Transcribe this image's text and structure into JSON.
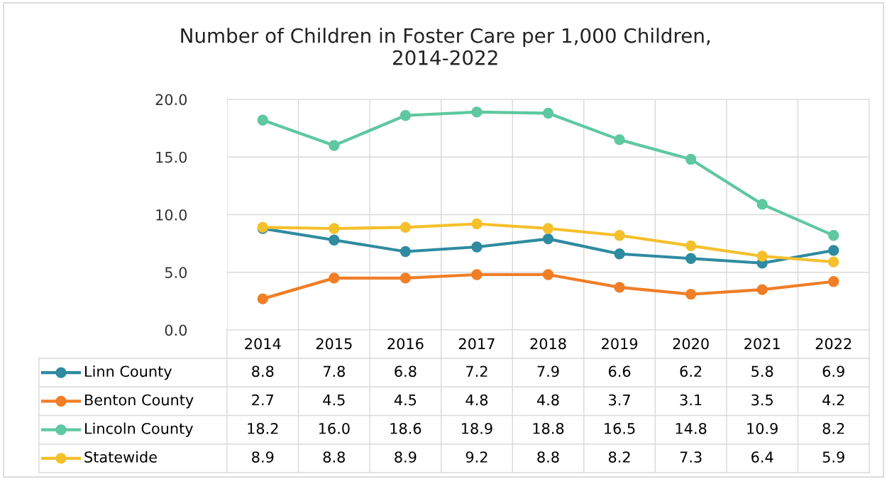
{
  "chart_data": {
    "type": "line",
    "title": "Number of Children in Foster Care per 1,000 Children,\n2014-2022",
    "categories": [
      "2014",
      "2015",
      "2016",
      "2017",
      "2018",
      "2019",
      "2020",
      "2021",
      "2022"
    ],
    "series": [
      {
        "name": "Linn County",
        "color": "#2e8ba0",
        "values": [
          8.8,
          7.8,
          6.8,
          7.2,
          7.9,
          6.6,
          6.2,
          5.8,
          6.9
        ],
        "value_labels": [
          "8.8",
          "7.8",
          "6.8",
          "7.2",
          "7.9",
          "6.6",
          "6.2",
          "5.8",
          "6.9"
        ]
      },
      {
        "name": "Benton County",
        "color": "#f07e26",
        "values": [
          2.7,
          4.5,
          4.5,
          4.8,
          4.8,
          3.7,
          3.1,
          3.5,
          4.2
        ],
        "value_labels": [
          "2.7",
          "4.5",
          "4.5",
          "4.8",
          "4.8",
          "3.7",
          "3.1",
          "3.5",
          "4.2"
        ]
      },
      {
        "name": "Lincoln County",
        "color": "#5ec8a0",
        "values": [
          18.2,
          16.0,
          18.6,
          18.9,
          18.8,
          16.5,
          14.8,
          10.9,
          8.2
        ],
        "value_labels": [
          "18.2",
          "16.0",
          "18.6",
          "18.9",
          "18.8",
          "16.5",
          "14.8",
          "10.9",
          "8.2"
        ]
      },
      {
        "name": "Statewide",
        "color": "#f4c02c",
        "values": [
          8.9,
          8.8,
          8.9,
          9.2,
          8.8,
          8.2,
          7.3,
          6.4,
          5.9
        ],
        "value_labels": [
          "8.9",
          "8.8",
          "8.9",
          "9.2",
          "8.8",
          "8.2",
          "7.3",
          "6.4",
          "5.9"
        ]
      }
    ],
    "ylim": [
      0,
      20
    ],
    "yticks": [
      {
        "value": 0,
        "label": "0.0"
      },
      {
        "value": 5,
        "label": "5.0"
      },
      {
        "value": 10,
        "label": "10.0"
      },
      {
        "value": 15,
        "label": "15.0"
      },
      {
        "value": 20,
        "label": "20.0"
      }
    ],
    "grid": true,
    "marker": "circle",
    "line_style": "solid",
    "legend": "bottom"
  }
}
